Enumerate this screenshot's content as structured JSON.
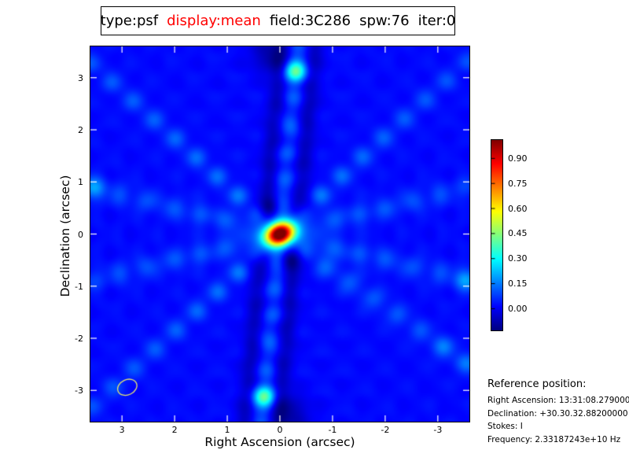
{
  "title": {
    "segments": [
      {
        "text": "type:psf",
        "color": "#000000"
      },
      {
        "text": "display:mean",
        "color": "#ff0000"
      },
      {
        "text": "field:3C286",
        "color": "#000000"
      },
      {
        "text": "spw:76",
        "color": "#000000"
      },
      {
        "text": "iter:0",
        "color": "#000000"
      }
    ]
  },
  "chart_data": {
    "type": "heatmap",
    "title": "type:psf display:mean field:3C286 spw:76 iter:0",
    "xlabel": "Right Ascension (arcsec)",
    "ylabel": "Declination (arcsec)",
    "x_ticks": [
      3,
      2,
      1,
      0,
      -1,
      -2,
      -3
    ],
    "y_ticks": [
      3,
      2,
      1,
      0,
      -1,
      -2,
      -3
    ],
    "x_range": [
      3.6,
      -3.6
    ],
    "y_range": [
      -3.6,
      3.6
    ],
    "colormap": "jet",
    "value_range": [
      -0.13,
      1.01
    ],
    "colorbar_ticks": [
      {
        "label": "0.90",
        "value": 0.9
      },
      {
        "label": "0.75",
        "value": 0.75
      },
      {
        "label": "0.60",
        "value": 0.6
      },
      {
        "label": "0.45",
        "value": 0.45
      },
      {
        "label": "0.30",
        "value": 0.3
      },
      {
        "label": "0.15",
        "value": 0.15
      },
      {
        "label": "0.00",
        "value": 0.0
      }
    ],
    "beam": {
      "a": 2.9,
      "d": -2.94,
      "r_major": 0.19,
      "r_minor": 0.145,
      "screen_angle_deg": -25,
      "color": "#e6e670"
    },
    "field": {
      "background": 0.02,
      "ripples": [
        {
          "angle_deg": 42.5,
          "spacing": 0.54,
          "amp": 0.011
        },
        {
          "angle_deg": 137.0,
          "spacing": 0.54,
          "amp": 0.009
        }
      ],
      "arms": [
        {
          "angle_deg": 42.5,
          "bidirectional": false,
          "spacing": 0.54,
          "sigma": 0.14,
          "amps": [
            0.12,
            0.11,
            0.1,
            0.1,
            0.095,
            0.09,
            0.085,
            0.08,
            0.075
          ]
        },
        {
          "angle_deg": 215.0,
          "bidirectional": false,
          "spacing": 0.54,
          "sigma": 0.145,
          "amps": [
            0.11,
            0.1,
            0.095,
            0.09,
            0.085,
            0.08,
            0.13,
            0.12
          ]
        },
        {
          "angle_deg": 137.0,
          "bidirectional": true,
          "spacing": 0.54,
          "sigma": 0.14,
          "amps": [
            0.12,
            0.11,
            0.1,
            0.095,
            0.09,
            0.085,
            0.08,
            0.075,
            0.07
          ]
        },
        {
          "angle_deg": 95.5,
          "bidirectional": true,
          "spacing": 0.523,
          "sigma": 0.15,
          "amps": [
            0.18,
            0.12,
            0.1,
            0.12,
            0.1,
            0.42,
            0.12
          ]
        },
        {
          "angle_deg": 14.0,
          "bidirectional": true,
          "spacing": 0.52,
          "sigma": 0.15,
          "amps": [
            0.1,
            0.095,
            0.09,
            0.085,
            0.08,
            0.075,
            0.18
          ]
        },
        {
          "angle_deg": 166.0,
          "bidirectional": true,
          "spacing": 0.52,
          "sigma": 0.15,
          "amps": [
            0.1,
            0.095,
            0.09,
            0.085,
            0.08,
            0.075,
            0.07
          ]
        }
      ],
      "peak": {
        "amp": 1.12,
        "sigma_major": 0.21,
        "sigma_minor": 0.155,
        "angle_deg": 155
      },
      "neg_ring": {
        "radius": 0.5,
        "sigma": 0.13,
        "amp": -0.08
      },
      "neg_lines": [
        {
          "angle_deg": 95.5,
          "offset": 0.3,
          "r0": 0.5,
          "r1": 3.8,
          "sigma": 0.13,
          "amp": -0.085
        },
        {
          "angle_deg": 95.5,
          "offset": -0.3,
          "r0": 0.5,
          "r1": 3.8,
          "sigma": 0.13,
          "amp": -0.085
        },
        {
          "angle_deg": 275.5,
          "offset": 0.3,
          "r0": 0.5,
          "r1": 3.8,
          "sigma": 0.13,
          "amp": -0.085
        },
        {
          "angle_deg": 275.5,
          "offset": -0.3,
          "r0": 0.5,
          "r1": 3.8,
          "sigma": 0.13,
          "amp": -0.085
        }
      ],
      "neg_beads": [
        {
          "a": 0.2,
          "d": 3.45,
          "sigma": 0.25,
          "amp": -0.1
        },
        {
          "a": -0.2,
          "d": -3.45,
          "sigma": 0.25,
          "amp": -0.1
        },
        {
          "a": 0.12,
          "d": 0.55,
          "sigma": 0.15,
          "amp": -0.055
        },
        {
          "a": -0.12,
          "d": -0.55,
          "sigma": 0.15,
          "amp": -0.055
        }
      ]
    }
  },
  "reference": {
    "heading": "Reference position:",
    "lines": [
      "Right Ascension: 13:31:08.27900000",
      "Declination: +30.30.32.88200000",
      "Stokes: I",
      "Frequency: 2.33187243e+10 Hz"
    ]
  }
}
